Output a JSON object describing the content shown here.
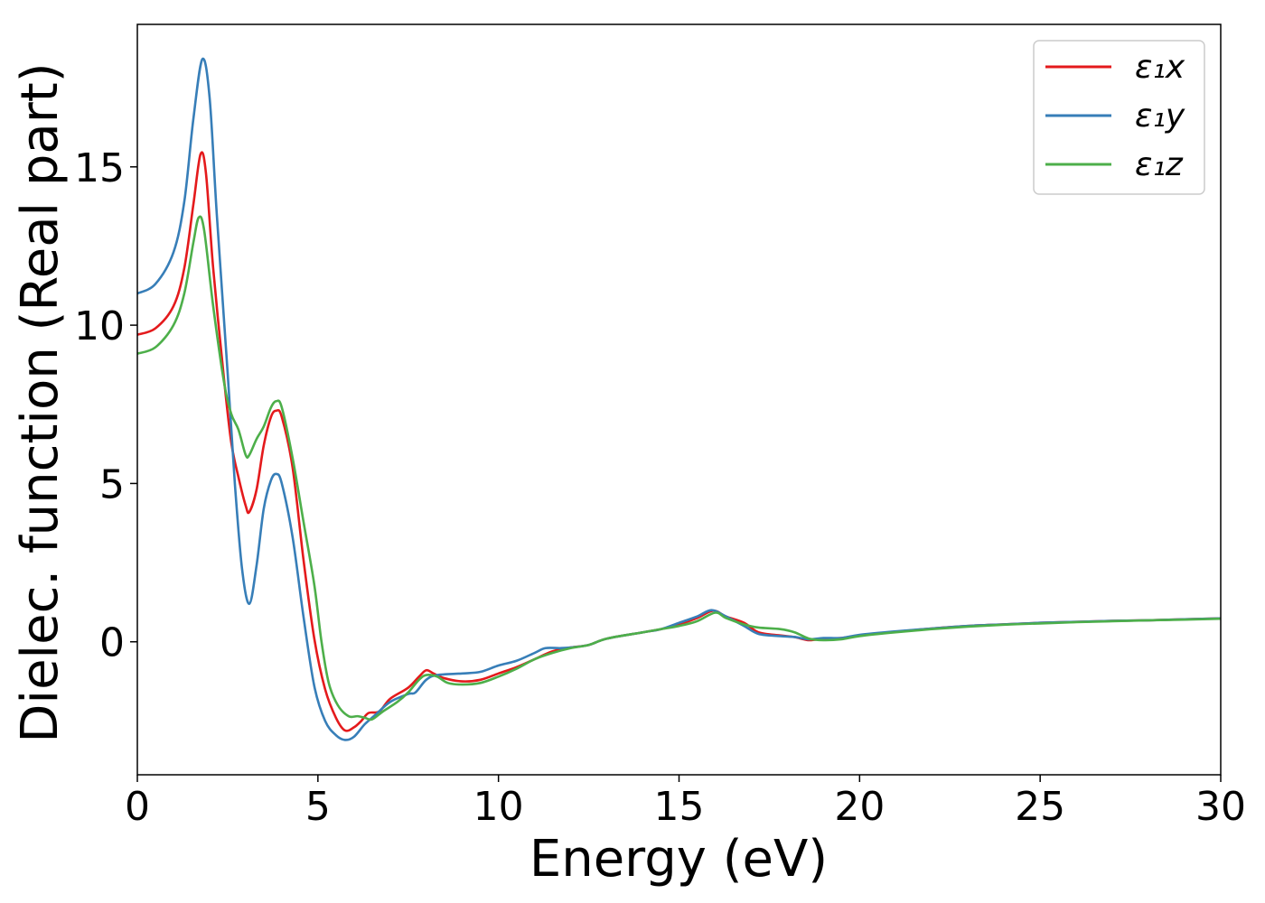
{
  "chart_data": {
    "type": "line",
    "xlabel": "Energy (eV)",
    "ylabel": "Dielec. function (Real part)",
    "xlim": [
      0,
      30
    ],
    "ylim": [
      -4.2,
      19.5
    ],
    "xticks": [
      0,
      5,
      10,
      15,
      20,
      25,
      30
    ],
    "yticks": [
      0,
      5,
      10,
      15
    ],
    "grid": false,
    "legend_position": "top-right",
    "series": [
      {
        "name": "ε₁x",
        "color": "#e41a1c",
        "points": [
          [
            0,
            9.7
          ],
          [
            0.5,
            9.9
          ],
          [
            1.0,
            10.6
          ],
          [
            1.3,
            11.8
          ],
          [
            1.55,
            13.8
          ],
          [
            1.75,
            15.4
          ],
          [
            1.9,
            14.8
          ],
          [
            2.1,
            11.8
          ],
          [
            2.4,
            8.3
          ],
          [
            2.6,
            6.3
          ],
          [
            2.8,
            5.2
          ],
          [
            3.0,
            4.3
          ],
          [
            3.1,
            4.1
          ],
          [
            3.3,
            4.8
          ],
          [
            3.5,
            6.2
          ],
          [
            3.7,
            7.1
          ],
          [
            3.85,
            7.3
          ],
          [
            4.0,
            7.1
          ],
          [
            4.3,
            5.5
          ],
          [
            4.6,
            2.6
          ],
          [
            4.9,
            0.1
          ],
          [
            5.2,
            -1.5
          ],
          [
            5.5,
            -2.4
          ],
          [
            5.75,
            -2.8
          ],
          [
            6.0,
            -2.7
          ],
          [
            6.2,
            -2.5
          ],
          [
            6.4,
            -2.25
          ],
          [
            6.7,
            -2.2
          ],
          [
            7.0,
            -1.8
          ],
          [
            7.5,
            -1.45
          ],
          [
            7.8,
            -1.1
          ],
          [
            8.0,
            -0.9
          ],
          [
            8.2,
            -1.0
          ],
          [
            8.5,
            -1.15
          ],
          [
            9.0,
            -1.25
          ],
          [
            9.5,
            -1.2
          ],
          [
            10.0,
            -1.0
          ],
          [
            10.5,
            -0.8
          ],
          [
            11.0,
            -0.55
          ],
          [
            11.5,
            -0.3
          ],
          [
            12.0,
            -0.18
          ],
          [
            12.5,
            -0.1
          ],
          [
            13.0,
            0.1
          ],
          [
            14.0,
            0.3
          ],
          [
            14.5,
            0.4
          ],
          [
            15.0,
            0.55
          ],
          [
            15.5,
            0.75
          ],
          [
            15.95,
            0.98
          ],
          [
            16.3,
            0.8
          ],
          [
            16.8,
            0.6
          ],
          [
            17.2,
            0.3
          ],
          [
            17.8,
            0.2
          ],
          [
            18.2,
            0.15
          ],
          [
            18.6,
            0.05
          ],
          [
            19.0,
            0.1
          ],
          [
            19.5,
            0.12
          ],
          [
            20.0,
            0.2
          ],
          [
            21.0,
            0.32
          ],
          [
            22.0,
            0.42
          ],
          [
            23.0,
            0.5
          ],
          [
            24.0,
            0.55
          ],
          [
            25.0,
            0.6
          ],
          [
            26.0,
            0.63
          ],
          [
            27.0,
            0.66
          ],
          [
            28.0,
            0.68
          ],
          [
            29.0,
            0.71
          ],
          [
            30.0,
            0.74
          ]
        ]
      },
      {
        "name": "ε₁y",
        "color": "#377eb8",
        "points": [
          [
            0,
            11.0
          ],
          [
            0.5,
            11.3
          ],
          [
            1.0,
            12.3
          ],
          [
            1.3,
            13.9
          ],
          [
            1.55,
            16.5
          ],
          [
            1.8,
            18.4
          ],
          [
            2.0,
            17.2
          ],
          [
            2.2,
            13.5
          ],
          [
            2.5,
            8.5
          ],
          [
            2.7,
            5.0
          ],
          [
            2.9,
            2.3
          ],
          [
            3.1,
            1.2
          ],
          [
            3.3,
            2.4
          ],
          [
            3.5,
            4.2
          ],
          [
            3.7,
            5.1
          ],
          [
            3.85,
            5.3
          ],
          [
            4.0,
            5.0
          ],
          [
            4.3,
            3.3
          ],
          [
            4.6,
            0.8
          ],
          [
            4.9,
            -1.4
          ],
          [
            5.2,
            -2.5
          ],
          [
            5.5,
            -2.95
          ],
          [
            5.75,
            -3.1
          ],
          [
            6.0,
            -3.0
          ],
          [
            6.3,
            -2.6
          ],
          [
            6.6,
            -2.3
          ],
          [
            7.0,
            -1.9
          ],
          [
            7.5,
            -1.65
          ],
          [
            7.7,
            -1.6
          ],
          [
            8.0,
            -1.2
          ],
          [
            8.3,
            -1.05
          ],
          [
            9.0,
            -1.0
          ],
          [
            9.5,
            -0.95
          ],
          [
            10.0,
            -0.75
          ],
          [
            10.5,
            -0.6
          ],
          [
            11.0,
            -0.35
          ],
          [
            11.3,
            -0.2
          ],
          [
            11.7,
            -0.2
          ],
          [
            12.0,
            -0.18
          ],
          [
            12.5,
            -0.1
          ],
          [
            13.0,
            0.1
          ],
          [
            14.0,
            0.3
          ],
          [
            14.5,
            0.4
          ],
          [
            15.0,
            0.6
          ],
          [
            15.5,
            0.8
          ],
          [
            15.9,
            1.0
          ],
          [
            16.3,
            0.8
          ],
          [
            16.8,
            0.5
          ],
          [
            17.2,
            0.25
          ],
          [
            17.8,
            0.18
          ],
          [
            18.2,
            0.15
          ],
          [
            18.6,
            0.08
          ],
          [
            19.0,
            0.12
          ],
          [
            19.5,
            0.12
          ],
          [
            20.0,
            0.22
          ],
          [
            21.0,
            0.33
          ],
          [
            22.0,
            0.42
          ],
          [
            23.0,
            0.5
          ],
          [
            24.0,
            0.55
          ],
          [
            25.0,
            0.6
          ],
          [
            26.0,
            0.63
          ],
          [
            27.0,
            0.66
          ],
          [
            28.0,
            0.68
          ],
          [
            29.0,
            0.71
          ],
          [
            30.0,
            0.74
          ]
        ]
      },
      {
        "name": "ε₁z",
        "color": "#4daf4a",
        "points": [
          [
            0,
            9.1
          ],
          [
            0.5,
            9.3
          ],
          [
            1.0,
            10.0
          ],
          [
            1.3,
            11.0
          ],
          [
            1.55,
            12.6
          ],
          [
            1.7,
            13.4
          ],
          [
            1.85,
            13.0
          ],
          [
            2.1,
            10.6
          ],
          [
            2.4,
            8.2
          ],
          [
            2.6,
            7.2
          ],
          [
            2.8,
            6.7
          ],
          [
            3.0,
            5.9
          ],
          [
            3.1,
            5.9
          ],
          [
            3.3,
            6.4
          ],
          [
            3.5,
            6.8
          ],
          [
            3.7,
            7.4
          ],
          [
            3.85,
            7.6
          ],
          [
            4.0,
            7.4
          ],
          [
            4.3,
            5.8
          ],
          [
            4.6,
            3.8
          ],
          [
            4.9,
            1.8
          ],
          [
            5.1,
            0.0
          ],
          [
            5.3,
            -1.3
          ],
          [
            5.55,
            -2.0
          ],
          [
            5.85,
            -2.35
          ],
          [
            6.1,
            -2.35
          ],
          [
            6.3,
            -2.4
          ],
          [
            6.5,
            -2.45
          ],
          [
            6.8,
            -2.2
          ],
          [
            7.2,
            -1.9
          ],
          [
            7.5,
            -1.6
          ],
          [
            7.8,
            -1.2
          ],
          [
            8.0,
            -1.05
          ],
          [
            8.3,
            -1.1
          ],
          [
            8.6,
            -1.3
          ],
          [
            9.0,
            -1.35
          ],
          [
            9.5,
            -1.3
          ],
          [
            10.0,
            -1.1
          ],
          [
            10.5,
            -0.85
          ],
          [
            11.0,
            -0.55
          ],
          [
            11.5,
            -0.35
          ],
          [
            12.0,
            -0.2
          ],
          [
            12.5,
            -0.1
          ],
          [
            13.0,
            0.1
          ],
          [
            14.0,
            0.3
          ],
          [
            14.5,
            0.4
          ],
          [
            15.0,
            0.5
          ],
          [
            15.5,
            0.65
          ],
          [
            16.0,
            0.92
          ],
          [
            16.3,
            0.75
          ],
          [
            16.8,
            0.55
          ],
          [
            17.2,
            0.45
          ],
          [
            17.8,
            0.4
          ],
          [
            18.2,
            0.3
          ],
          [
            18.6,
            0.1
          ],
          [
            19.0,
            0.05
          ],
          [
            19.5,
            0.08
          ],
          [
            20.0,
            0.18
          ],
          [
            21.0,
            0.3
          ],
          [
            22.0,
            0.4
          ],
          [
            23.0,
            0.48
          ],
          [
            24.0,
            0.54
          ],
          [
            25.0,
            0.58
          ],
          [
            26.0,
            0.62
          ],
          [
            27.0,
            0.65
          ],
          [
            28.0,
            0.68
          ],
          [
            29.0,
            0.7
          ],
          [
            30.0,
            0.73
          ]
        ]
      }
    ]
  }
}
